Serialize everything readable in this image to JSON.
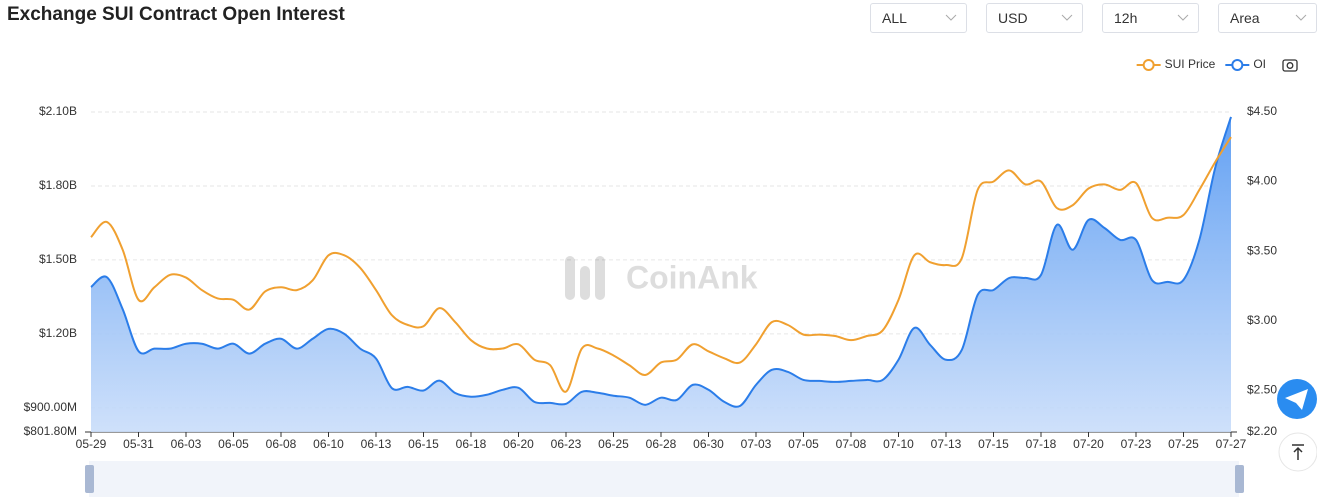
{
  "title": "Exchange SUI Contract Open Interest",
  "controls": [
    "ALL",
    "USD",
    "12h",
    "Area"
  ],
  "watermark": "CoinAnk",
  "chart_data": {
    "type": "area",
    "categories": [
      "05-29",
      null,
      null,
      "05-31",
      null,
      null,
      "06-03",
      null,
      null,
      "06-05",
      null,
      null,
      "06-08",
      null,
      null,
      "06-10",
      null,
      null,
      "06-13",
      null,
      null,
      "06-15",
      null,
      null,
      "06-18",
      null,
      null,
      "06-20",
      null,
      null,
      "06-23",
      null,
      null,
      "06-25",
      null,
      null,
      "06-28",
      null,
      null,
      "06-30",
      null,
      null,
      "07-03",
      null,
      null,
      "07-05",
      null,
      null,
      "07-08",
      null,
      null,
      "07-10",
      null,
      null,
      "07-13",
      null,
      null,
      "07-15",
      null,
      null,
      "07-18",
      null,
      null,
      "07-20",
      null,
      null,
      "07-23",
      null,
      null,
      "07-25",
      null,
      null,
      "07-27"
    ],
    "series": [
      {
        "name": "SUI Price",
        "color": "#f0a030",
        "axis": "y2",
        "type": "line",
        "values": [
          3.6,
          3.71,
          3.51,
          3.15,
          3.24,
          3.33,
          3.31,
          3.22,
          3.16,
          3.15,
          3.08,
          3.21,
          3.24,
          3.22,
          3.29,
          3.47,
          3.47,
          3.38,
          3.22,
          3.04,
          2.97,
          2.96,
          3.09,
          2.99,
          2.86,
          2.8,
          2.8,
          2.83,
          2.72,
          2.68,
          2.49,
          2.8,
          2.8,
          2.75,
          2.68,
          2.61,
          2.7,
          2.72,
          2.83,
          2.78,
          2.73,
          2.7,
          2.83,
          2.99,
          2.97,
          2.9,
          2.9,
          2.89,
          2.86,
          2.89,
          2.93,
          3.15,
          3.47,
          3.42,
          3.4,
          3.45,
          3.94,
          4.0,
          4.08,
          3.98,
          4.0,
          3.81,
          3.83,
          3.95,
          3.98,
          3.94,
          3.99,
          3.74,
          3.74,
          3.76,
          3.94,
          4.14,
          4.32
        ]
      },
      {
        "name": "OI",
        "color": "#2b7de9",
        "axis": "y",
        "type": "area",
        "values": [
          1390000000.0,
          1430000000.0,
          1300000000.0,
          1130000000.0,
          1140000000.0,
          1140000000.0,
          1160000000.0,
          1160000000.0,
          1140000000.0,
          1160000000.0,
          1120000000.0,
          1160000000.0,
          1180000000.0,
          1140000000.0,
          1180000000.0,
          1220000000.0,
          1200000000.0,
          1140000000.0,
          1100000000.0,
          980000000.0,
          985000000.0,
          970000000.0,
          1010000000.0,
          960000000.0,
          945000000.0,
          953000000.0,
          973000000.0,
          981000000.0,
          924000000.0,
          920000000.0,
          916000000.0,
          965000000.0,
          961000000.0,
          949000000.0,
          941000000.0,
          912000000.0,
          941000000.0,
          932000000.0,
          993000000.0,
          973000000.0,
          924000000.0,
          908000000.0,
          993000000.0,
          1054000000.0,
          1046000000.0,
          1013000000.0,
          1009000000.0,
          1005000000.0,
          1009000000.0,
          1013000000.0,
          1013000000.0,
          1095000000.0,
          1224000000.0,
          1155000000.0,
          1095000000.0,
          1135000000.0,
          1358000000.0,
          1378000000.0,
          1427000000.0,
          1427000000.0,
          1439000000.0,
          1642000000.0,
          1541000000.0,
          1662000000.0,
          1630000000.0,
          1581000000.0,
          1581000000.0,
          1419000000.0,
          1411000000.0,
          1419000000.0,
          1581000000.0,
          1873000000.0,
          2080000000.0
        ]
      }
    ],
    "ylim": [
      801800000,
      2100000000
    ],
    "yticks": [
      {
        "value": 801800000,
        "label": "$801.80M"
      },
      {
        "value": 900000000,
        "label": "$900.00M"
      },
      {
        "value": 1200000000,
        "label": "$1.20B"
      },
      {
        "value": 1500000000,
        "label": "$1.50B"
      },
      {
        "value": 1800000000,
        "label": "$1.80B"
      },
      {
        "value": 2100000000,
        "label": "$2.10B"
      }
    ],
    "y2lim": [
      2.2,
      4.5
    ],
    "y2ticks": [
      {
        "value": 2.2,
        "label": "$2.20"
      },
      {
        "value": 2.5,
        "label": "$2.50"
      },
      {
        "value": 3,
        "label": "$3.00"
      },
      {
        "value": 3.5,
        "label": "$3.50"
      },
      {
        "value": 4,
        "label": "$4.00"
      },
      {
        "value": 4.5,
        "label": "$4.50"
      }
    ],
    "grid": true,
    "legend": "top-right"
  }
}
